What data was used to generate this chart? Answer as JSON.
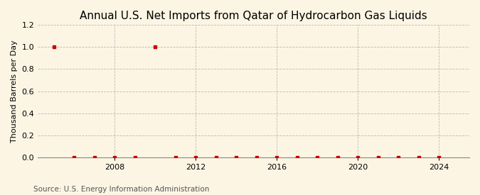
{
  "title": "Annual U.S. Net Imports from Qatar of Hydrocarbon Gas Liquids",
  "ylabel": "Thousand Barrels per Day",
  "source": "Source: U.S. Energy Information Administration",
  "background_color": "#fdf5e4",
  "years": [
    2005,
    2006,
    2007,
    2008,
    2009,
    2010,
    2011,
    2012,
    2013,
    2014,
    2015,
    2016,
    2017,
    2018,
    2019,
    2020,
    2021,
    2022,
    2023,
    2024
  ],
  "values": [
    1.0,
    0.0,
    0.0,
    0.0,
    0.0,
    1.0,
    0.0,
    0.0,
    0.0,
    0.0,
    0.0,
    0.0,
    0.0,
    0.0,
    0.0,
    0.0,
    0.0,
    0.0,
    0.0,
    0.0
  ],
  "marker_color": "#cc0000",
  "grid_color": "#aaaaaa",
  "xlim": [
    2004.2,
    2025.5
  ],
  "ylim": [
    0,
    1.2
  ],
  "yticks": [
    0.0,
    0.2,
    0.4,
    0.6,
    0.8,
    1.0,
    1.2
  ],
  "xticks": [
    2008,
    2012,
    2016,
    2020,
    2024
  ],
  "title_fontsize": 11,
  "label_fontsize": 8,
  "tick_fontsize": 8,
  "source_fontsize": 7.5
}
